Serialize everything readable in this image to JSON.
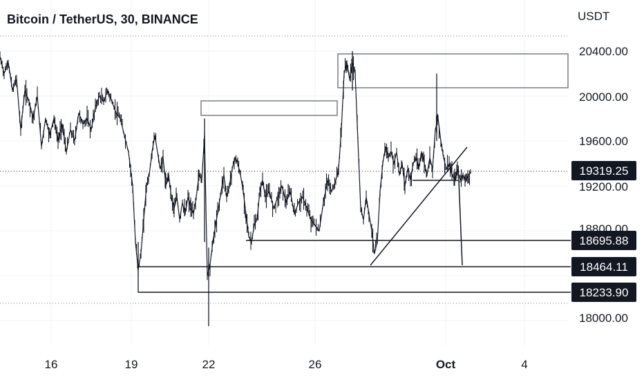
{
  "header": {
    "title": "Bitcoin / TetherUS, 30, BINANCE",
    "unit": "USDT"
  },
  "chart_data": {
    "type": "candlestick",
    "title": "Bitcoin / TetherUS, 30, BINANCE",
    "ylabel": "USDT",
    "ylim": [
      17900,
      20600
    ],
    "y_ticks": [
      "20400.00",
      "20000.00",
      "19600.00",
      "19200.00",
      "18800.00",
      "18000.00"
    ],
    "x_ticks": [
      "16",
      "19",
      "22",
      "26",
      "Oct",
      "4"
    ],
    "price_labels": [
      {
        "value": 19319.25,
        "text": "19319.25"
      },
      {
        "value": 18695.88,
        "text": "18695.88"
      },
      {
        "value": 18464.11,
        "text": "18464.11"
      },
      {
        "value": 18233.9,
        "text": "18233.90"
      }
    ],
    "close_path": [
      [
        0,
        20350
      ],
      [
        6,
        20200
      ],
      [
        12,
        20300
      ],
      [
        18,
        20050
      ],
      [
        24,
        20150
      ],
      [
        30,
        19700
      ],
      [
        36,
        20050
      ],
      [
        42,
        19950
      ],
      [
        48,
        19800
      ],
      [
        54,
        20000
      ],
      [
        60,
        19550
      ],
      [
        66,
        19800
      ],
      [
        72,
        19650
      ],
      [
        78,
        19800
      ],
      [
        84,
        19600
      ],
      [
        90,
        19750
      ],
      [
        96,
        19500
      ],
      [
        102,
        19700
      ],
      [
        108,
        19600
      ],
      [
        114,
        19850
      ],
      [
        120,
        19750
      ],
      [
        126,
        19800
      ],
      [
        132,
        19700
      ],
      [
        138,
        19900
      ],
      [
        144,
        20000
      ],
      [
        150,
        19950
      ],
      [
        156,
        20050
      ],
      [
        162,
        19950
      ],
      [
        168,
        19850
      ],
      [
        174,
        19800
      ],
      [
        180,
        19650
      ],
      [
        186,
        19500
      ],
      [
        192,
        19200
      ],
      [
        196,
        18700
      ],
      [
        200,
        18450
      ],
      [
        204,
        18600
      ],
      [
        208,
        18900
      ],
      [
        212,
        19200
      ],
      [
        216,
        19300
      ],
      [
        220,
        19500
      ],
      [
        224,
        19650
      ],
      [
        228,
        19500
      ],
      [
        232,
        19350
      ],
      [
        236,
        19450
      ],
      [
        240,
        19200
      ],
      [
        244,
        19300
      ],
      [
        248,
        19100
      ],
      [
        252,
        19000
      ],
      [
        256,
        19100
      ],
      [
        260,
        18900
      ],
      [
        264,
        19050
      ],
      [
        268,
        18950
      ],
      [
        272,
        19100
      ],
      [
        276,
        19000
      ],
      [
        280,
        18950
      ],
      [
        284,
        19100
      ],
      [
        288,
        19300
      ],
      [
        292,
        19250
      ],
      [
        296,
        19650
      ],
      [
        300,
        18400
      ],
      [
        304,
        18500
      ],
      [
        308,
        18700
      ],
      [
        312,
        18850
      ],
      [
        316,
        19000
      ],
      [
        320,
        19150
      ],
      [
        324,
        19300
      ],
      [
        328,
        19100
      ],
      [
        332,
        19200
      ],
      [
        336,
        19350
      ],
      [
        340,
        19450
      ],
      [
        344,
        19400
      ],
      [
        348,
        19300
      ],
      [
        352,
        19150
      ],
      [
        356,
        18950
      ],
      [
        360,
        18750
      ],
      [
        364,
        18700
      ],
      [
        368,
        18850
      ],
      [
        372,
        18900
      ],
      [
        376,
        19150
      ],
      [
        380,
        19250
      ],
      [
        384,
        19100
      ],
      [
        390,
        19150
      ],
      [
        396,
        19000
      ],
      [
        402,
        19100
      ],
      [
        408,
        19200
      ],
      [
        414,
        19050
      ],
      [
        420,
        19150
      ],
      [
        426,
        18950
      ],
      [
        432,
        19050
      ],
      [
        438,
        19100
      ],
      [
        444,
        19000
      ],
      [
        450,
        18900
      ],
      [
        456,
        18850
      ],
      [
        462,
        18800
      ],
      [
        468,
        19050
      ],
      [
        474,
        19250
      ],
      [
        480,
        19150
      ],
      [
        486,
        19250
      ],
      [
        490,
        19350
      ],
      [
        494,
        19700
      ],
      [
        498,
        20200
      ],
      [
        502,
        20300
      ],
      [
        506,
        20150
      ],
      [
        510,
        20300
      ],
      [
        514,
        20200
      ],
      [
        518,
        19600
      ],
      [
        522,
        19000
      ],
      [
        526,
        18900
      ],
      [
        530,
        19100
      ],
      [
        534,
        18950
      ],
      [
        538,
        18800
      ],
      [
        542,
        18600
      ],
      [
        546,
        18700
      ],
      [
        550,
        19150
      ],
      [
        554,
        19400
      ],
      [
        558,
        19550
      ],
      [
        562,
        19450
      ],
      [
        566,
        19500
      ],
      [
        570,
        19400
      ],
      [
        574,
        19500
      ],
      [
        578,
        19300
      ],
      [
        582,
        19400
      ],
      [
        586,
        19200
      ],
      [
        590,
        19350
      ],
      [
        594,
        19250
      ],
      [
        598,
        19400
      ],
      [
        602,
        19450
      ],
      [
        606,
        19350
      ],
      [
        610,
        19500
      ],
      [
        614,
        19400
      ],
      [
        618,
        19300
      ],
      [
        622,
        19450
      ],
      [
        626,
        19350
      ],
      [
        630,
        19700
      ],
      [
        634,
        19800
      ],
      [
        638,
        19600
      ],
      [
        642,
        19450
      ],
      [
        646,
        19350
      ],
      [
        650,
        19400
      ],
      [
        654,
        19300
      ],
      [
        658,
        19250
      ],
      [
        662,
        19350
      ],
      [
        666,
        19250
      ],
      [
        670,
        19300
      ],
      [
        674,
        19250
      ],
      [
        678,
        19300
      ],
      [
        682,
        19320
      ]
    ]
  }
}
